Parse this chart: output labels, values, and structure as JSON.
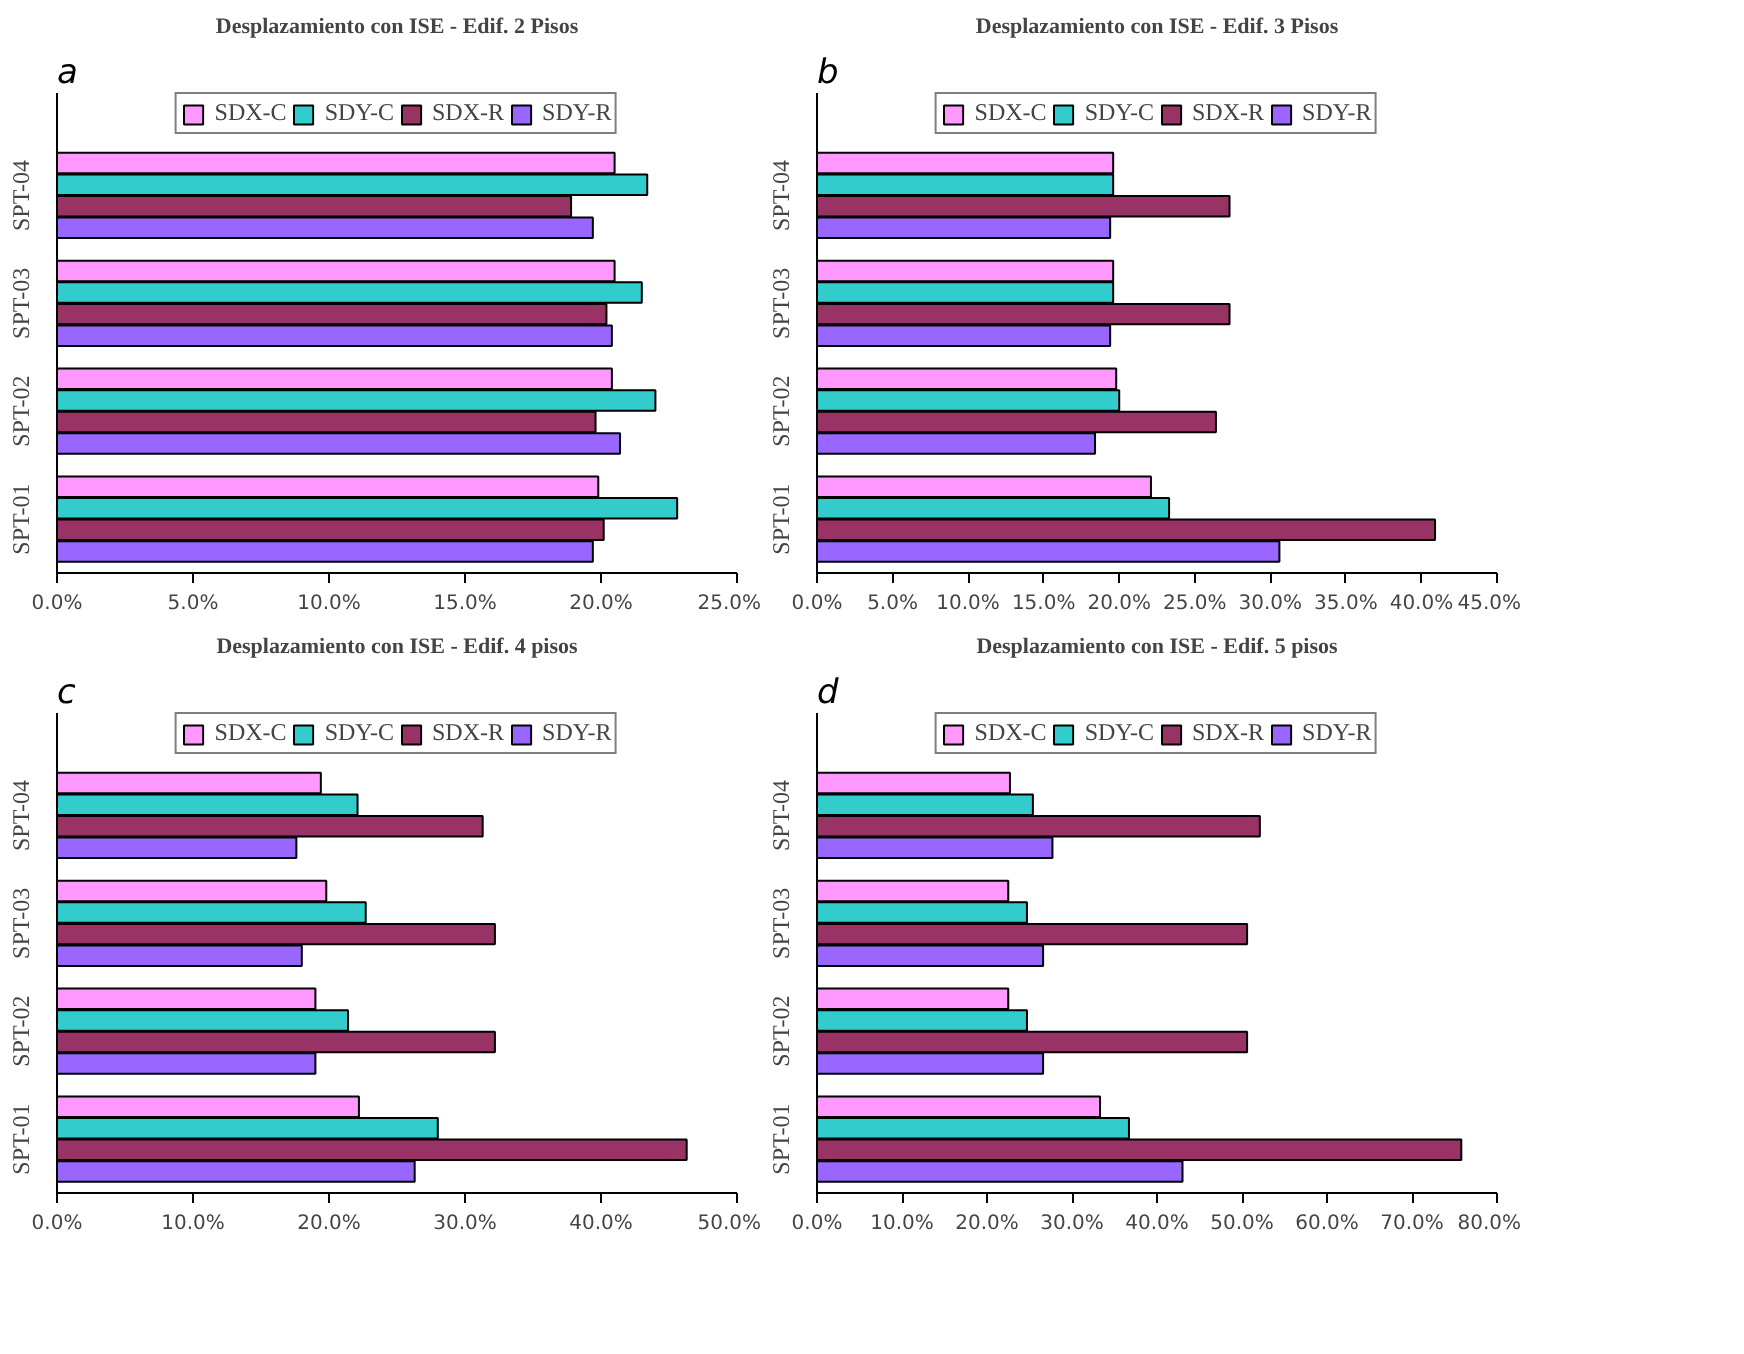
{
  "chart_data": [
    {
      "type": "bar",
      "orientation": "horizontal",
      "title": "Desplazamiento con ISE - Edif. 2 Pisos",
      "annotations": [
        "a"
      ],
      "categories": [
        "SPT-04",
        "SPT-03",
        "SPT-02",
        "SPT-01"
      ],
      "xlim": [
        0,
        25
      ],
      "xticks": [
        {
          "value": 0,
          "label": "0.0%"
        },
        {
          "value": 5,
          "label": "5.0%"
        },
        {
          "value": 10,
          "label": "10.0%"
        },
        {
          "value": 15,
          "label": "15.0%"
        },
        {
          "value": 20,
          "label": "20.0%"
        },
        {
          "value": 25,
          "label": "25.0%"
        }
      ],
      "legend": "top",
      "grid": false,
      "series": [
        {
          "name": "SDX-C",
          "color": "#ff99ff",
          "values": [
            20.5,
            20.5,
            20.4,
            19.9
          ]
        },
        {
          "name": "SDY-C",
          "color": "#33cccc",
          "values": [
            21.7,
            21.5,
            22.0,
            22.8
          ]
        },
        {
          "name": "SDX-R",
          "color": "#993366",
          "values": [
            18.9,
            20.2,
            19.8,
            20.1
          ]
        },
        {
          "name": "SDY-R",
          "color": "#9966ff",
          "values": [
            19.7,
            20.4,
            20.7,
            19.7
          ]
        }
      ]
    },
    {
      "type": "bar",
      "orientation": "horizontal",
      "title": "Desplazamiento con ISE - Edif. 3 Pisos",
      "annotations": [
        "b"
      ],
      "categories": [
        "SPT-04",
        "SPT-03",
        "SPT-02",
        "SPT-01"
      ],
      "xlim": [
        0,
        45
      ],
      "xticks": [
        {
          "value": 0,
          "label": "0.0%"
        },
        {
          "value": 5,
          "label": "5.0%"
        },
        {
          "value": 10,
          "label": "10.0%"
        },
        {
          "value": 15,
          "label": "15.0%"
        },
        {
          "value": 20,
          "label": "20.0%"
        },
        {
          "value": 25,
          "label": "25.0%"
        },
        {
          "value": 30,
          "label": "30.0%"
        },
        {
          "value": 35,
          "label": "35.0%"
        },
        {
          "value": 40,
          "label": "40.0%"
        },
        {
          "value": 45,
          "label": "45.0%"
        }
      ],
      "legend": "top",
      "grid": false,
      "series": [
        {
          "name": "SDX-C",
          "color": "#ff99ff",
          "values": [
            19.6,
            19.6,
            19.8,
            22.1
          ]
        },
        {
          "name": "SDY-C",
          "color": "#33cccc",
          "values": [
            19.6,
            19.6,
            20.0,
            23.3
          ]
        },
        {
          "name": "SDX-R",
          "color": "#993366",
          "values": [
            27.3,
            27.3,
            26.4,
            40.9
          ]
        },
        {
          "name": "SDY-R",
          "color": "#9966ff",
          "values": [
            19.4,
            19.4,
            18.4,
            30.6
          ]
        }
      ]
    },
    {
      "type": "bar",
      "orientation": "horizontal",
      "title": "Desplazamiento con ISE - Edif. 4 pisos",
      "annotations": [
        "c"
      ],
      "categories": [
        "SPT-04",
        "SPT-03",
        "SPT-02",
        "SPT-01"
      ],
      "xlim": [
        0,
        50
      ],
      "xticks": [
        {
          "value": 0,
          "label": "0.0%"
        },
        {
          "value": 10,
          "label": "10.0%"
        },
        {
          "value": 20,
          "label": "20.0%"
        },
        {
          "value": 30,
          "label": "30.0%"
        },
        {
          "value": 40,
          "label": "40.0%"
        },
        {
          "value": 50,
          "label": "50.0%"
        }
      ],
      "legend": "top",
      "grid": false,
      "series": [
        {
          "name": "SDX-C",
          "color": "#ff99ff",
          "values": [
            19.4,
            19.8,
            19.0,
            22.2
          ]
        },
        {
          "name": "SDY-C",
          "color": "#33cccc",
          "values": [
            22.1,
            22.7,
            21.4,
            28.0
          ]
        },
        {
          "name": "SDX-R",
          "color": "#993366",
          "values": [
            31.3,
            32.2,
            32.2,
            46.3
          ]
        },
        {
          "name": "SDY-R",
          "color": "#9966ff",
          "values": [
            17.6,
            18.0,
            19.0,
            26.3
          ]
        }
      ]
    },
    {
      "type": "bar",
      "orientation": "horizontal",
      "title": "Desplazamiento con ISE - Edif. 5 pisos",
      "annotations": [
        "d"
      ],
      "categories": [
        "SPT-04",
        "SPT-03",
        "SPT-02",
        "SPT-01"
      ],
      "xlim": [
        0,
        80
      ],
      "xticks": [
        {
          "value": 0,
          "label": "0.0%"
        },
        {
          "value": 10,
          "label": "10.0%"
        },
        {
          "value": 20,
          "label": "20.0%"
        },
        {
          "value": 30,
          "label": "30.0%"
        },
        {
          "value": 40,
          "label": "40.0%"
        },
        {
          "value": 50,
          "label": "50.0%"
        },
        {
          "value": 60,
          "label": "60.0%"
        },
        {
          "value": 70,
          "label": "70.0%"
        },
        {
          "value": 80,
          "label": "80.0%"
        }
      ],
      "legend": "top",
      "grid": false,
      "series": [
        {
          "name": "SDX-C",
          "color": "#ff99ff",
          "values": [
            22.7,
            22.5,
            22.5,
            33.3
          ]
        },
        {
          "name": "SDY-C",
          "color": "#33cccc",
          "values": [
            25.4,
            24.7,
            24.7,
            36.7
          ]
        },
        {
          "name": "SDX-R",
          "color": "#993366",
          "values": [
            52.1,
            50.6,
            50.6,
            75.8
          ]
        },
        {
          "name": "SDY-R",
          "color": "#9966ff",
          "values": [
            27.7,
            26.6,
            26.6,
            43.0
          ]
        }
      ]
    }
  ]
}
